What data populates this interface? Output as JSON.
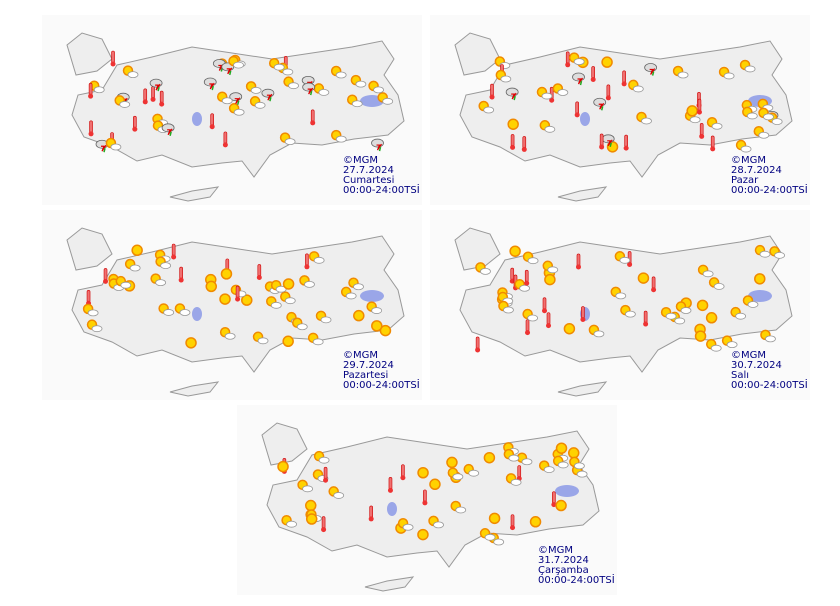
{
  "maps": [
    {
      "copyright": "©MGM",
      "date": "27.7.2024",
      "day": "Cumartesi",
      "time": "00:00-24:00TSİ"
    },
    {
      "copyright": "©MGM",
      "date": "28.7.2024",
      "day": "Pazar",
      "time": "00:00-24:00TSİ"
    },
    {
      "copyright": "©MGM",
      "date": "29.7.2024",
      "day": "Pazartesi",
      "time": "00:00-24:00TSİ"
    },
    {
      "copyright": "©MGM",
      "date": "30.7.2024",
      "day": "Salı",
      "time": "00:00-24:00TSİ"
    },
    {
      "copyright": "©MGM",
      "date": "31.7.2024",
      "day": "Çarşamba",
      "time": "00:00-24:00TSİ"
    }
  ]
}
